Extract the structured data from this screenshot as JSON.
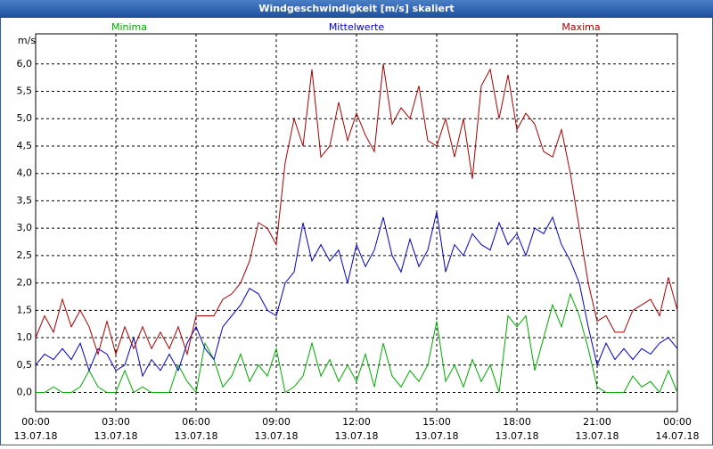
{
  "chart_data": {
    "type": "line",
    "title": "Windgeschwindigkeit [m/s] skaliert",
    "y_label": "m/s",
    "grid": true,
    "xlim": [
      0,
      1440
    ],
    "ylim": [
      -0.35,
      6.55
    ],
    "xticks": [
      {
        "value": 0,
        "label": "00:00",
        "date": "13.07.18"
      },
      {
        "value": 180,
        "label": "03:00",
        "date": "13.07.18"
      },
      {
        "value": 360,
        "label": "06:00",
        "date": "13.07.18"
      },
      {
        "value": 540,
        "label": "09:00",
        "date": "13.07.18"
      },
      {
        "value": 720,
        "label": "12:00",
        "date": "13.07.18"
      },
      {
        "value": 900,
        "label": "15:00",
        "date": "13.07.18"
      },
      {
        "value": 1080,
        "label": "18:00",
        "date": "13.07.18"
      },
      {
        "value": 1260,
        "label": "21:00",
        "date": "13.07.18"
      },
      {
        "value": 1440,
        "label": "00:00",
        "date": "14.07.18"
      }
    ],
    "yticks": [
      {
        "value": 0,
        "label": "0,0"
      },
      {
        "value": 0.5,
        "label": "0,5"
      },
      {
        "value": 1,
        "label": "1,0"
      },
      {
        "value": 1.5,
        "label": "1,5"
      },
      {
        "value": 2,
        "label": "2,0"
      },
      {
        "value": 2.5,
        "label": "2,5"
      },
      {
        "value": 3,
        "label": "3,0"
      },
      {
        "value": 3.5,
        "label": "3,5"
      },
      {
        "value": 4,
        "label": "4,0"
      },
      {
        "value": 4.5,
        "label": "4,5"
      },
      {
        "value": 5,
        "label": "5,0"
      },
      {
        "value": 5.5,
        "label": "5,5"
      },
      {
        "value": 6,
        "label": "6,0"
      }
    ],
    "x": [
      0,
      20,
      40,
      60,
      80,
      100,
      120,
      140,
      160,
      180,
      200,
      220,
      240,
      260,
      280,
      300,
      320,
      340,
      360,
      380,
      400,
      420,
      440,
      460,
      480,
      500,
      520,
      540,
      560,
      580,
      600,
      620,
      640,
      660,
      680,
      700,
      720,
      740,
      760,
      780,
      800,
      820,
      840,
      860,
      880,
      900,
      920,
      940,
      960,
      980,
      1000,
      1020,
      1040,
      1060,
      1080,
      1100,
      1120,
      1140,
      1160,
      1180,
      1200,
      1220,
      1240,
      1260,
      1280,
      1300,
      1320,
      1340,
      1360,
      1380,
      1400,
      1420,
      1440
    ],
    "series": [
      {
        "name": "Minima",
        "color": "#00aa00",
        "values": [
          0,
          0,
          0.1,
          0,
          0,
          0.1,
          0.4,
          0.1,
          0,
          0,
          0.4,
          0,
          0.1,
          0,
          0,
          0,
          0.5,
          0.2,
          0,
          0.9,
          0.6,
          0.1,
          0.3,
          0.7,
          0.2,
          0.5,
          0.3,
          0.8,
          0,
          0.1,
          0.3,
          0.9,
          0.3,
          0.6,
          0.2,
          0.5,
          0.2,
          0.7,
          0.1,
          0.9,
          0.3,
          0.1,
          0.4,
          0.2,
          0.5,
          1.3,
          0.2,
          0.5,
          0.1,
          0.6,
          0.2,
          0.5,
          0,
          1.4,
          1.2,
          1.4,
          0.4,
          1,
          1.6,
          1.2,
          1.8,
          1.4,
          0.8,
          0.1,
          0,
          0,
          0,
          0.3,
          0.1,
          0.2,
          0,
          0.4,
          0
        ]
      },
      {
        "name": "Mittelwerte",
        "color": "#0000cc",
        "values": [
          0.5,
          0.7,
          0.6,
          0.8,
          0.6,
          0.9,
          0.4,
          0.8,
          0.7,
          0.4,
          0.5,
          1,
          0.3,
          0.6,
          0.4,
          0.7,
          0.4,
          0.9,
          1.2,
          0.8,
          0.6,
          1.2,
          1.4,
          1.6,
          1.9,
          1.8,
          1.5,
          1.4,
          2,
          2.2,
          3.1,
          2.4,
          2.7,
          2.4,
          2.6,
          2,
          2.7,
          2.3,
          2.6,
          3.2,
          2.5,
          2.2,
          2.8,
          2.3,
          2.6,
          3.3,
          2.2,
          2.7,
          2.5,
          2.9,
          2.7,
          2.6,
          3.1,
          2.7,
          2.9,
          2.5,
          3,
          2.9,
          3.2,
          2.7,
          2.4,
          2,
          1.2,
          0.5,
          0.9,
          0.6,
          0.8,
          0.6,
          0.8,
          0.7,
          0.9,
          1,
          0.8
        ]
      },
      {
        "name": "Maxima",
        "color": "#aa0000",
        "values": [
          1,
          1.4,
          1.1,
          1.7,
          1.2,
          1.5,
          1.2,
          0.7,
          1.3,
          0.7,
          1.2,
          0.8,
          1.2,
          0.8,
          1.1,
          0.8,
          1.2,
          0.7,
          1.4,
          1.4,
          1.4,
          1.7,
          1.8,
          2,
          2.4,
          3.1,
          3,
          2.7,
          4.2,
          5,
          4.5,
          5.9,
          4.3,
          4.5,
          5.3,
          4.6,
          5.1,
          4.7,
          4.4,
          6,
          4.9,
          5.2,
          5,
          5.6,
          4.6,
          4.5,
          5,
          4.3,
          5,
          3.9,
          5.6,
          5.9,
          5,
          5.8,
          4.8,
          5.1,
          4.9,
          4.4,
          4.3,
          4.8,
          4,
          3,
          2,
          1.3,
          1.4,
          1.1,
          1.1,
          1.5,
          1.6,
          1.7,
          1.4,
          2.1,
          1.5
        ]
      }
    ]
  }
}
